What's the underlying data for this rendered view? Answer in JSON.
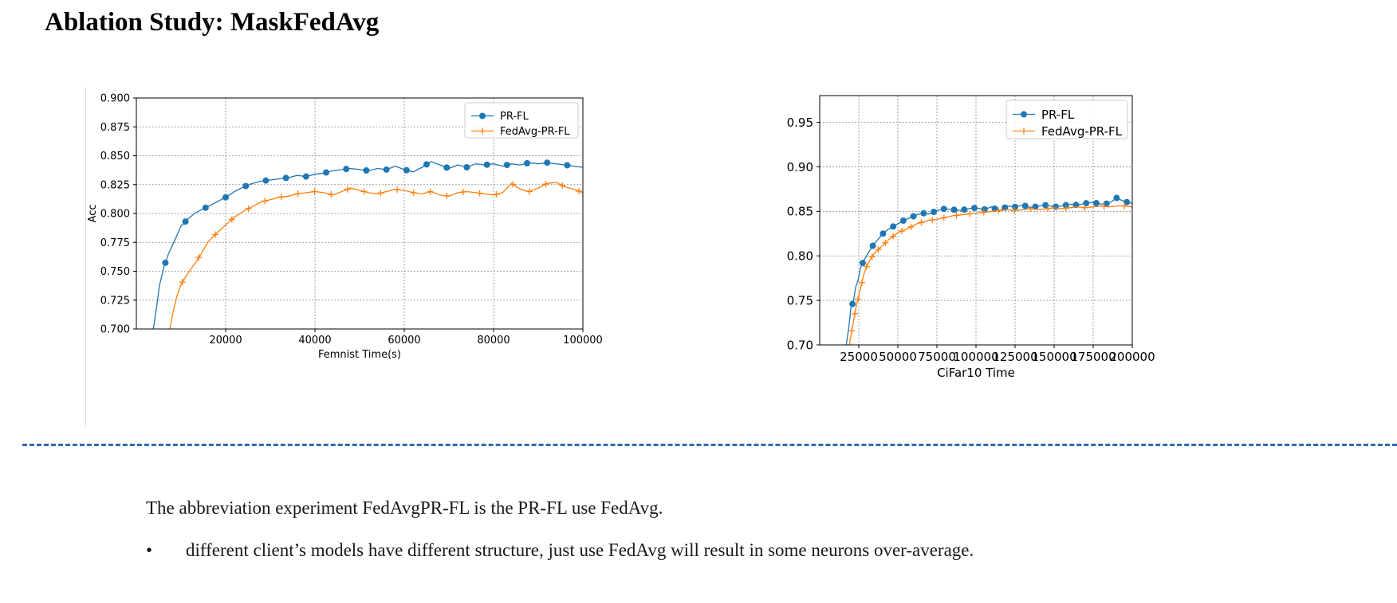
{
  "page": {
    "title": "Ablation Study: MaskFedAvg",
    "note": "The abbreviation experiment FedAvgPR-FL is the PR-FL use FedAvg.",
    "bullet_symbol": "•",
    "bullet": "different client’s models have different structure, just use FedAvg will result in some neurons over-average."
  },
  "chart_data": [
    {
      "type": "line",
      "title": "",
      "xlabel": "Femnist Time(s)",
      "ylabel": "Acc",
      "xlim": [
        0,
        100000
      ],
      "ylim": [
        0.7,
        0.9
      ],
      "xticks": [
        20000,
        40000,
        60000,
        80000,
        100000
      ],
      "xtick_labels": [
        "20000",
        "40000",
        "60000",
        "80000",
        "100000"
      ],
      "yticks": [
        0.7,
        0.725,
        0.75,
        0.775,
        0.8,
        0.825,
        0.85,
        0.875,
        0.9
      ],
      "ytick_labels": [
        "0.700",
        "0.725",
        "0.750",
        "0.775",
        "0.800",
        "0.825",
        "0.850",
        "0.875",
        "0.900"
      ],
      "grid": true,
      "legend": "top-right",
      "series": [
        {
          "name": "PR-FL",
          "color": "#1f77b4",
          "marker": "circle",
          "x": [
            3800,
            4500,
            5200,
            6200,
            7200,
            8500,
            10000,
            11500,
            13000,
            14500,
            16000,
            18000,
            20000,
            22000,
            24000,
            26000,
            28000,
            30000,
            32000,
            34000,
            36000,
            38000,
            40000,
            42000,
            44000,
            46000,
            48000,
            50000,
            52000,
            54000,
            56000,
            58000,
            60000,
            62000,
            64000,
            66000,
            68000,
            70000,
            72000,
            74000,
            76000,
            78000,
            80000,
            82000,
            84000,
            86000,
            88000,
            90000,
            92000,
            94000,
            96000,
            98000,
            100000
          ],
          "y": [
            0.7,
            0.718,
            0.738,
            0.754,
            0.765,
            0.776,
            0.789,
            0.795,
            0.8,
            0.803,
            0.806,
            0.81,
            0.814,
            0.819,
            0.823,
            0.826,
            0.828,
            0.829,
            0.83,
            0.831,
            0.833,
            0.832,
            0.834,
            0.835,
            0.837,
            0.838,
            0.839,
            0.838,
            0.837,
            0.839,
            0.838,
            0.841,
            0.838,
            0.836,
            0.84,
            0.845,
            0.842,
            0.839,
            0.842,
            0.84,
            0.843,
            0.842,
            0.843,
            0.841,
            0.843,
            0.842,
            0.844,
            0.843,
            0.844,
            0.843,
            0.842,
            0.841,
            0.84
          ],
          "marker_x": [
            6500,
            11000,
            15500,
            20000,
            24500,
            29000,
            33500,
            38000,
            42500,
            47000,
            51500,
            56000,
            60500,
            65000,
            69500,
            74000,
            78500,
            83000,
            87500,
            92000,
            96500
          ]
        },
        {
          "name": "FedAvg-PR-FL",
          "color": "#ff7f0e",
          "marker": "plus",
          "x": [
            7500,
            8300,
            9200,
            10200,
            11500,
            13000,
            14500,
            16000,
            18000,
            20000,
            22000,
            24000,
            26000,
            28000,
            30000,
            32000,
            34000,
            36000,
            38000,
            40000,
            42000,
            44000,
            46000,
            48000,
            50000,
            52000,
            54000,
            56000,
            58000,
            60000,
            62000,
            64000,
            66000,
            68000,
            70000,
            72000,
            74000,
            76000,
            78000,
            80000,
            82000,
            84000,
            86000,
            88000,
            90000,
            92000,
            94000,
            96000,
            98000,
            100000
          ],
          "y": [
            0.7,
            0.716,
            0.73,
            0.74,
            0.748,
            0.756,
            0.765,
            0.775,
            0.783,
            0.79,
            0.797,
            0.802,
            0.806,
            0.81,
            0.812,
            0.814,
            0.815,
            0.817,
            0.818,
            0.819,
            0.818,
            0.816,
            0.819,
            0.822,
            0.82,
            0.818,
            0.817,
            0.819,
            0.821,
            0.82,
            0.818,
            0.817,
            0.819,
            0.816,
            0.815,
            0.818,
            0.819,
            0.818,
            0.817,
            0.816,
            0.818,
            0.826,
            0.821,
            0.819,
            0.822,
            0.826,
            0.827,
            0.823,
            0.821,
            0.818
          ],
          "marker_x": [
            10300,
            14000,
            17700,
            21400,
            25100,
            28800,
            32500,
            36200,
            39900,
            43600,
            47300,
            51000,
            54700,
            58400,
            62100,
            65800,
            69500,
            73200,
            76900,
            80600,
            84300,
            88000,
            91700,
            95400,
            99100
          ]
        }
      ]
    },
    {
      "type": "line",
      "title": "",
      "xlabel": "CiFar10 Time",
      "ylabel": "",
      "xlim": [
        0,
        200000
      ],
      "ylim": [
        0.7,
        0.98
      ],
      "xticks": [
        25000,
        50000,
        75000,
        100000,
        125000,
        150000,
        175000,
        200000
      ],
      "xtick_labels": [
        "25000",
        "50000",
        "75000",
        "100000",
        "125000",
        "150000",
        "175000",
        "200000"
      ],
      "yticks": [
        0.7,
        0.75,
        0.8,
        0.85,
        0.9,
        0.95
      ],
      "ytick_labels": [
        "0.70",
        "0.75",
        "0.80",
        "0.85",
        "0.90",
        "0.95"
      ],
      "grid": true,
      "legend": "top-right",
      "series": [
        {
          "name": "PR-FL",
          "color": "#1f77b4",
          "marker": "circle",
          "x": [
            17000,
            18500,
            20000,
            21500,
            23000,
            24500,
            26000,
            28000,
            30000,
            32000,
            35000,
            38000,
            41000,
            44000,
            47000,
            50000,
            54000,
            58000,
            62000,
            66000,
            70000,
            75000,
            80000,
            85000,
            90000,
            95000,
            100000,
            105000,
            110000,
            115000,
            120000,
            125000,
            130000,
            135000,
            140000,
            145000,
            150000,
            155000,
            160000,
            165000,
            170000,
            175000,
            180000,
            185000,
            190000,
            195000,
            200000
          ],
          "y": [
            0.7,
            0.718,
            0.742,
            0.748,
            0.765,
            0.772,
            0.786,
            0.794,
            0.8,
            0.806,
            0.814,
            0.82,
            0.826,
            0.83,
            0.833,
            0.836,
            0.84,
            0.843,
            0.846,
            0.848,
            0.847,
            0.851,
            0.853,
            0.852,
            0.851,
            0.853,
            0.854,
            0.852,
            0.855,
            0.85,
            0.856,
            0.855,
            0.857,
            0.854,
            0.856,
            0.857,
            0.855,
            0.856,
            0.858,
            0.857,
            0.859,
            0.86,
            0.858,
            0.859,
            0.865,
            0.861,
            0.859
          ],
          "marker_x": [
            21000,
            27500,
            34000,
            40500,
            47000,
            53500,
            60000,
            66500,
            73000,
            79500,
            86000,
            92500,
            99000,
            105500,
            112000,
            118500,
            125000,
            131500,
            138000,
            144500,
            151000,
            157500,
            164000,
            170500,
            177000,
            183500,
            190000,
            196500
          ]
        },
        {
          "name": "FedAvg-PR-FL",
          "color": "#ff7f0e",
          "marker": "plus",
          "x": [
            19000,
            20500,
            22000,
            23500,
            25000,
            26500,
            28000,
            30000,
            32000,
            35000,
            38000,
            41000,
            44000,
            47000,
            50000,
            54000,
            58000,
            62000,
            66000,
            70000,
            75000,
            80000,
            85000,
            90000,
            95000,
            100000,
            105000,
            110000,
            115000,
            120000,
            125000,
            130000,
            135000,
            140000,
            145000,
            150000,
            155000,
            160000,
            165000,
            170000,
            175000,
            180000,
            185000,
            190000,
            195000,
            200000
          ],
          "y": [
            0.7,
            0.716,
            0.73,
            0.745,
            0.755,
            0.766,
            0.778,
            0.788,
            0.795,
            0.803,
            0.808,
            0.813,
            0.818,
            0.822,
            0.826,
            0.829,
            0.832,
            0.836,
            0.838,
            0.84,
            0.841,
            0.843,
            0.845,
            0.846,
            0.847,
            0.848,
            0.849,
            0.85,
            0.851,
            0.852,
            0.851,
            0.852,
            0.853,
            0.852,
            0.853,
            0.854,
            0.853,
            0.854,
            0.855,
            0.854,
            0.855,
            0.856,
            0.855,
            0.856,
            0.856,
            0.855
          ],
          "marker_x": [
            20500,
            22500,
            24500,
            27000,
            30000,
            33500,
            37500,
            42000,
            47000,
            52500,
            58500,
            65000,
            72000,
            79500,
            87500,
            96000,
            105000,
            114500,
            124500,
            135000,
            146000,
            157500,
            169500,
            182000,
            195000
          ]
        }
      ]
    }
  ]
}
